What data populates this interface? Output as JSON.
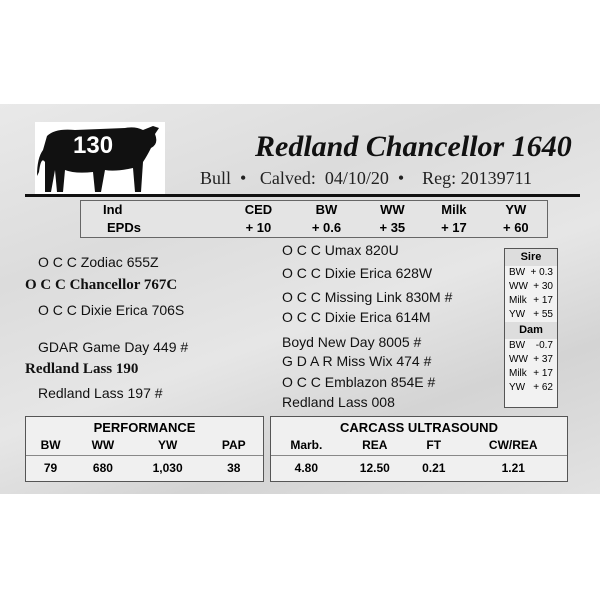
{
  "lot": {
    "number": "130",
    "icon": "bull-silhouette-icon"
  },
  "animal": {
    "name": "Redland Chancellor 1640",
    "sex": "Bull",
    "calved_label": "Calved:",
    "calved": "04/10/20",
    "reg_label": "Reg:",
    "reg": "20139711"
  },
  "epd": {
    "headers": [
      "Ind",
      "CED",
      "BW",
      "WW",
      "Milk",
      "YW"
    ],
    "row_label": "EPDs",
    "values": [
      "+ 10",
      "+ 0.6",
      "+ 35",
      "+ 17",
      "+ 60"
    ]
  },
  "pedigree": {
    "sire_sire": "O C C Zodiac 655Z",
    "sire": "O C C Chancellor 767C",
    "sire_dam": "O C C Dixie Erica 706S",
    "dam_sire": "GDAR Game Day 449 #",
    "dam": "Redland Lass 190",
    "dam_dam": "Redland Lass 197 #",
    "ss_sire": "O C C Umax 820U",
    "ss_dam": "O C C Dixie Erica 628W",
    "sd_sire": "O C C Missing Link 830M #",
    "sd_dam": "O C C Dixie Erica 614M",
    "ds_sire": "Boyd New Day 8005 #",
    "ds_dam": "G D A R Miss Wix 474 #",
    "dd_sire": "O C C Emblazon 854E #",
    "dd_dam": "Redland Lass 008"
  },
  "sire_epd": {
    "title": "Sire",
    "rows": [
      [
        "BW",
        "+ 0.3"
      ],
      [
        "WW",
        "+ 30"
      ],
      [
        "Milk",
        "+ 17"
      ],
      [
        "YW",
        "+ 55"
      ]
    ]
  },
  "dam_epd": {
    "title": "Dam",
    "rows": [
      [
        "BW",
        "-0.7"
      ],
      [
        "WW",
        "+ 37"
      ],
      [
        "Milk",
        "+ 17"
      ],
      [
        "YW",
        "+ 62"
      ]
    ]
  },
  "performance": {
    "title": "PERFORMANCE",
    "headers": [
      "BW",
      "WW",
      "YW",
      "PAP"
    ],
    "values": [
      "79",
      "680",
      "1,030",
      "38"
    ]
  },
  "carcass": {
    "title": "CARCASS ULTRASOUND",
    "headers": [
      "Marb.",
      "REA",
      "FT",
      "CW/REA"
    ],
    "values": [
      "4.80",
      "12.50",
      "0.21",
      "1.21"
    ]
  }
}
